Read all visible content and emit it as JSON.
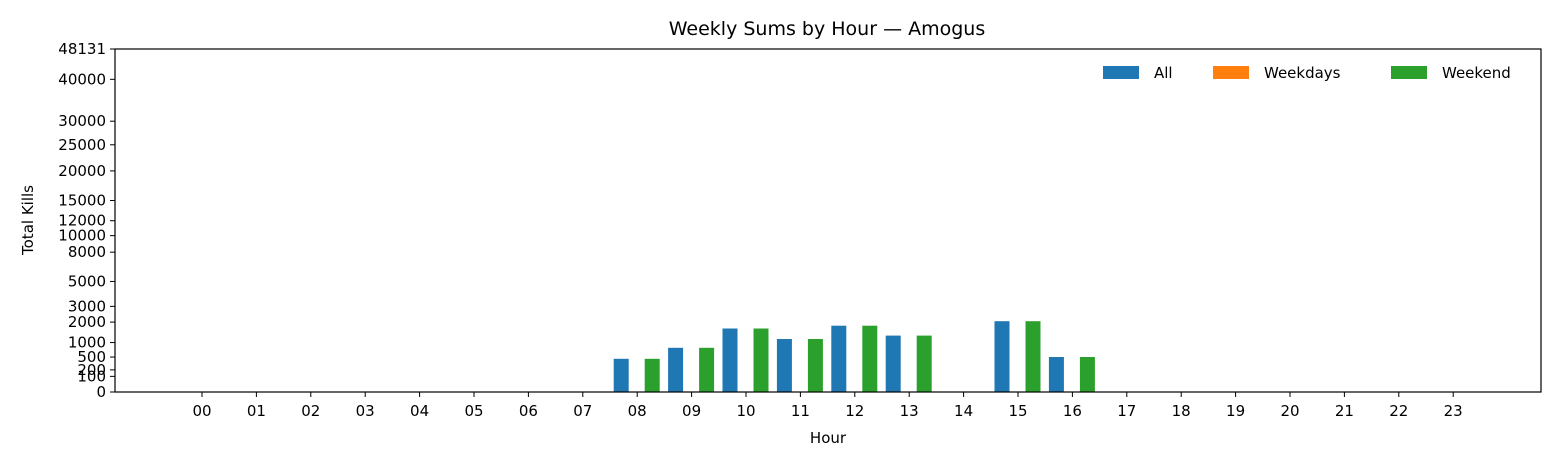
{
  "chart_data": {
    "type": "bar",
    "title": "Weekly Sums by Hour — Amogus",
    "xlabel": "Hour",
    "ylabel": "Total Kills",
    "y_scale": "square-root",
    "categories": [
      "00",
      "01",
      "02",
      "03",
      "04",
      "05",
      "06",
      "07",
      "08",
      "09",
      "10",
      "11",
      "12",
      "13",
      "14",
      "15",
      "16",
      "17",
      "18",
      "19",
      "20",
      "21",
      "22",
      "23"
    ],
    "series": [
      {
        "name": "All",
        "color": "#1f77b4",
        "values": [
          0,
          0,
          0,
          0,
          0,
          0,
          0,
          0,
          450,
          800,
          1650,
          1150,
          1800,
          1300,
          0,
          2050,
          500,
          0,
          0,
          0,
          0,
          0,
          0,
          0
        ]
      },
      {
        "name": "Weekdays",
        "color": "#ff7f0e",
        "values": [
          0,
          0,
          0,
          0,
          0,
          0,
          0,
          0,
          0,
          0,
          0,
          0,
          0,
          0,
          0,
          0,
          0,
          0,
          0,
          0,
          0,
          0,
          0,
          0
        ]
      },
      {
        "name": "Weekend",
        "color": "#2ca02c",
        "values": [
          0,
          0,
          0,
          0,
          0,
          0,
          0,
          0,
          450,
          800,
          1650,
          1150,
          1800,
          1300,
          0,
          2050,
          500,
          0,
          0,
          0,
          0,
          0,
          0,
          0
        ]
      }
    ],
    "yticks": [
      0,
      100,
      200,
      500,
      1000,
      2000,
      3000,
      5000,
      8000,
      10000,
      12000,
      15000,
      20000,
      25000,
      30000,
      40000,
      48131
    ],
    "ylim": [
      0,
      48131
    ],
    "legend": {
      "placement": "top-right",
      "columns": 3
    },
    "grid": false
  }
}
